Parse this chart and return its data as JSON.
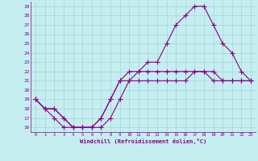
{
  "xlabel": "Windchill (Refroidissement éolien,°C)",
  "xlim": [
    -0.5,
    23.5
  ],
  "ylim": [
    15.5,
    29.5
  ],
  "yticks": [
    16,
    17,
    18,
    19,
    20,
    21,
    22,
    23,
    24,
    25,
    26,
    27,
    28,
    29
  ],
  "xticks": [
    0,
    1,
    2,
    3,
    4,
    5,
    6,
    7,
    8,
    9,
    10,
    11,
    12,
    13,
    14,
    15,
    16,
    17,
    18,
    19,
    20,
    21,
    22,
    23
  ],
  "bg_color": "#c5eef0",
  "grid_color": "#9ecdd4",
  "line_color": "#880088",
  "line1_x": [
    0,
    1,
    2,
    3,
    4,
    5,
    6,
    7,
    8,
    9,
    10,
    11,
    12,
    13,
    14,
    15,
    16,
    17,
    18,
    19,
    20,
    21,
    22,
    23
  ],
  "line1_y": [
    19,
    18,
    18,
    17,
    16,
    16,
    16,
    16,
    17,
    19,
    21,
    22,
    23,
    23,
    25,
    27,
    28,
    29,
    29,
    27,
    25,
    24,
    22,
    21
  ],
  "line2_x": [
    0,
    1,
    2,
    3,
    4,
    5,
    6,
    7,
    8,
    9,
    10,
    11,
    12,
    13,
    14,
    15,
    16,
    17,
    18,
    19,
    20,
    21,
    22,
    23
  ],
  "line2_y": [
    19,
    18,
    18,
    17,
    16,
    16,
    16,
    17,
    19,
    21,
    21,
    21,
    21,
    21,
    21,
    21,
    21,
    22,
    22,
    22,
    21,
    21,
    21,
    21
  ],
  "line3_x": [
    0,
    1,
    2,
    3,
    4,
    5,
    6,
    7,
    8,
    9,
    10,
    11,
    12,
    13,
    14,
    15,
    16,
    17,
    18,
    19,
    20,
    21,
    22,
    23
  ],
  "line3_y": [
    19,
    18,
    17,
    16,
    16,
    16,
    16,
    17,
    19,
    21,
    22,
    22,
    22,
    22,
    22,
    22,
    22,
    22,
    22,
    21,
    21,
    21,
    21,
    21
  ],
  "markersize": 2.0,
  "linewidth": 0.8
}
